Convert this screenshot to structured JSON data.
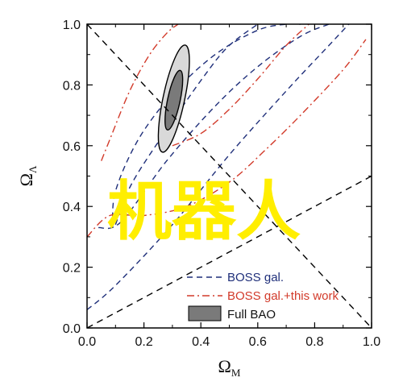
{
  "chart_data": {
    "type": "line",
    "xlabel": "Ω",
    "xlabel_sub": "M",
    "ylabel": "Ω",
    "ylabel_sub": "Λ",
    "xlim": [
      0.0,
      1.0
    ],
    "ylim": [
      0.0,
      1.0
    ],
    "xticks": [
      "0.0",
      "0.2",
      "0.4",
      "0.6",
      "0.8",
      "1.0"
    ],
    "yticks": [
      "0.0",
      "0.2",
      "0.4",
      "0.6",
      "0.8",
      "1.0"
    ],
    "grid": false,
    "legend_position": "bottom-right",
    "colors": {
      "boss": "#1f2f7a",
      "boss_this_work": "#d23a2a",
      "full_bao_outer": "#d9d9d9",
      "full_bao_inner": "#7a7a7a",
      "reference_lines": "#000000",
      "watermark": "#ffee00"
    },
    "reference_lines": [
      {
        "name": "flat",
        "x": [
          0.0,
          1.0
        ],
        "y": [
          1.0,
          0.0
        ]
      },
      {
        "name": "acceleration",
        "x": [
          0.0,
          1.0
        ],
        "y": [
          0.0,
          0.5
        ]
      }
    ],
    "series": [
      {
        "name": "BOSS gal.",
        "style": "dashed",
        "color": "#1f2f7a",
        "contours": [
          {
            "x": [
              0.09,
              0.1,
              0.18,
              0.3,
              0.45,
              0.6,
              0.7,
              0.75
            ],
            "y": [
              0.33,
              0.45,
              0.62,
              0.77,
              0.9,
              0.98,
              1.0,
              1.0
            ]
          },
          {
            "x": [
              0.1,
              0.16,
              0.3,
              0.42,
              0.5,
              0.6
            ],
            "y": [
              0.34,
              0.48,
              0.68,
              0.84,
              0.93,
              1.0
            ]
          },
          {
            "x": [
              0.04,
              0.12,
              0.28,
              0.45,
              0.6,
              0.75,
              0.85
            ],
            "y": [
              0.33,
              0.35,
              0.55,
              0.73,
              0.86,
              0.96,
              1.0
            ]
          },
          {
            "x": [
              0.0,
              0.1,
              0.3,
              0.5,
              0.7,
              0.85,
              0.92
            ],
            "y": [
              0.06,
              0.14,
              0.34,
              0.57,
              0.78,
              0.93,
              1.0
            ]
          }
        ]
      },
      {
        "name": "BOSS gal.+this work",
        "style": "dashdot",
        "color": "#d23a2a",
        "contours": [
          {
            "x": [
              0.05,
              0.08,
              0.15,
              0.22,
              0.28,
              0.32
            ],
            "y": [
              0.55,
              0.62,
              0.78,
              0.9,
              0.97,
              1.0
            ]
          },
          {
            "x": [
              0.3,
              0.4,
              0.5,
              0.6,
              0.7,
              0.78
            ],
            "y": [
              0.6,
              0.64,
              0.72,
              0.82,
              0.93,
              1.0
            ]
          },
          {
            "x": [
              0.0,
              0.08,
              0.2,
              0.35,
              0.5,
              0.62,
              0.75,
              0.9,
              0.98
            ],
            "y": [
              0.3,
              0.37,
              0.37,
              0.4,
              0.48,
              0.58,
              0.7,
              0.85,
              0.95
            ]
          }
        ]
      },
      {
        "name": "Full BAO",
        "style": "filled",
        "color": "#7a7a7a",
        "ellipses": [
          {
            "level": "outer",
            "cx": 0.305,
            "cy": 0.755,
            "rx": 0.038,
            "ry": 0.18,
            "rotation_deg": 12
          },
          {
            "level": "inner",
            "cx": 0.305,
            "cy": 0.75,
            "rx": 0.022,
            "ry": 0.1,
            "rotation_deg": 12
          }
        ]
      }
    ],
    "legend": [
      "BOSS gal.",
      "BOSS gal.+this work",
      "Full BAO"
    ],
    "watermark_text": "机器人"
  }
}
